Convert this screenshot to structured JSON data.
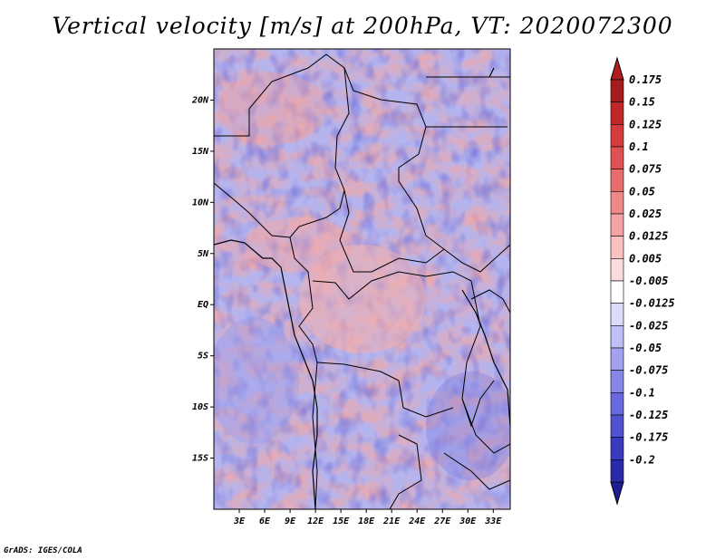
{
  "title": "Vertical velocity [m/s] at 200hPa, VT: 2020072300",
  "credit": "GrADS: IGES/COLA",
  "map": {
    "lat_range": [
      -20,
      25
    ],
    "lon_range": [
      0,
      35
    ],
    "lat_labels": [
      {
        "value": 20,
        "label": "20N"
      },
      {
        "value": 15,
        "label": "15N"
      },
      {
        "value": 10,
        "label": "10N"
      },
      {
        "value": 5,
        "label": "5N"
      },
      {
        "value": 0,
        "label": "EQ"
      },
      {
        "value": -5,
        "label": "5S"
      },
      {
        "value": -10,
        "label": "10S"
      },
      {
        "value": -15,
        "label": "15S"
      }
    ],
    "lon_labels": [
      {
        "value": 3,
        "label": "3E"
      },
      {
        "value": 6,
        "label": "6E"
      },
      {
        "value": 9,
        "label": "9E"
      },
      {
        "value": 12,
        "label": "12E"
      },
      {
        "value": 15,
        "label": "15E"
      },
      {
        "value": 18,
        "label": "18E"
      },
      {
        "value": 21,
        "label": "21E"
      },
      {
        "value": 24,
        "label": "24E"
      },
      {
        "value": 27,
        "label": "27E"
      },
      {
        "value": 30,
        "label": "30E"
      },
      {
        "value": 33,
        "label": "33E"
      }
    ]
  },
  "colorbar": {
    "levels": [
      {
        "label": "0.175",
        "color": "#a41c1c"
      },
      {
        "label": "0.15",
        "color": "#c02828"
      },
      {
        "label": "0.125",
        "color": "#d43c3c"
      },
      {
        "label": "0.1",
        "color": "#e05252"
      },
      {
        "label": "0.075",
        "color": "#e86c6c"
      },
      {
        "label": "0.05",
        "color": "#ef8888"
      },
      {
        "label": "0.025",
        "color": "#f4a4a4"
      },
      {
        "label": "0.0125",
        "color": "#f8c0c0"
      },
      {
        "label": "0.005",
        "color": "#fbdcdc"
      },
      {
        "label": "-0.005",
        "color": "#ffffff"
      },
      {
        "label": "-0.0125",
        "color": "#dcdcfa"
      },
      {
        "label": "-0.025",
        "color": "#c0c0f6"
      },
      {
        "label": "-0.05",
        "color": "#a2a2f0"
      },
      {
        "label": "-0.075",
        "color": "#8686e8"
      },
      {
        "label": "-0.1",
        "color": "#6a6ade"
      },
      {
        "label": "-0.125",
        "color": "#5252d0"
      },
      {
        "label": "-0.175",
        "color": "#3a3ac0"
      },
      {
        "label": "-0.2",
        "color": "#2a2aa8"
      }
    ],
    "top_color": "#b21e1e",
    "bottom_color": "#1e1e96"
  }
}
